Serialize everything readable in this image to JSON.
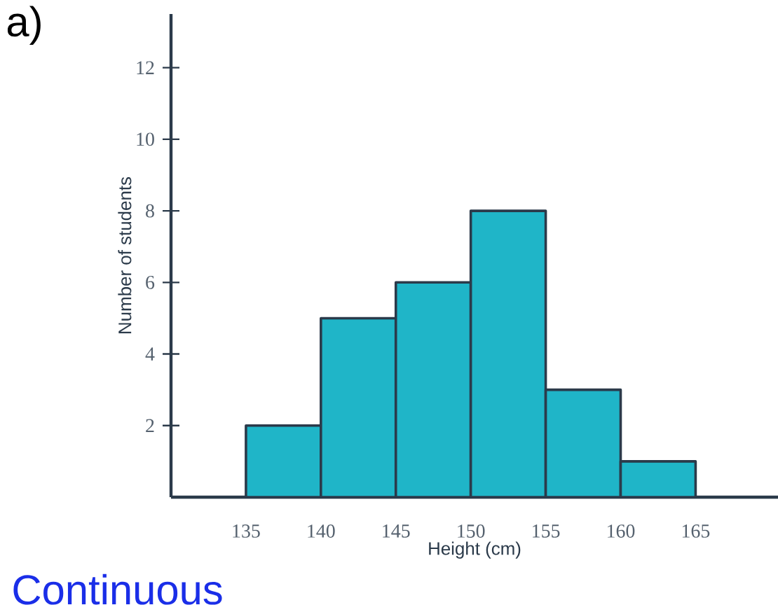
{
  "chart_data": {
    "type": "histogram",
    "xlabel": "Height (cm)",
    "ylabel": "Number of students",
    "bins": [
      135,
      140,
      145,
      150,
      155,
      160,
      165
    ],
    "values": [
      2,
      5,
      6,
      8,
      3,
      1
    ],
    "color": "#1fb5c8",
    "xlim": [
      130,
      170.5
    ],
    "ylim": [
      0,
      13.5
    ],
    "xticks": [
      135,
      140,
      145,
      150,
      155,
      160,
      165
    ],
    "yticks": [
      2,
      4,
      6,
      8,
      10,
      12
    ],
    "annotations": [
      "a)",
      "Continuous"
    ]
  }
}
